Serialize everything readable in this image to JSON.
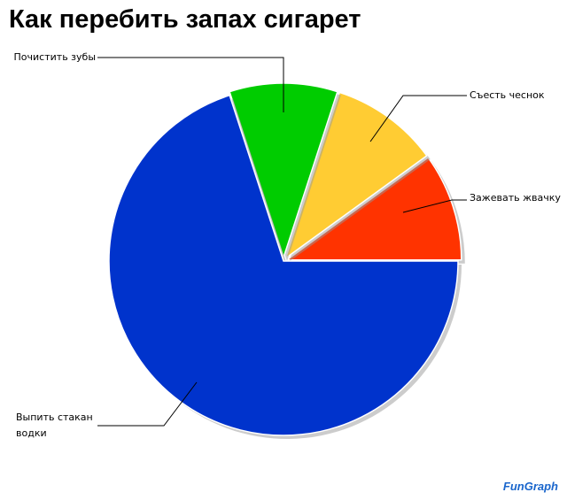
{
  "chart_data": {
    "type": "pie",
    "title": "Как перебить запах сигарет",
    "categories": [
      "Зажевать жвачку",
      "Съесть чеснок",
      "Почистить зубы",
      "Выпить стакан водки"
    ],
    "values": [
      10,
      10,
      10,
      70
    ],
    "colors": [
      "#ff3300",
      "#ffcc33",
      "#00cc00",
      "#0033cc"
    ],
    "watermark": "FunGraph"
  }
}
